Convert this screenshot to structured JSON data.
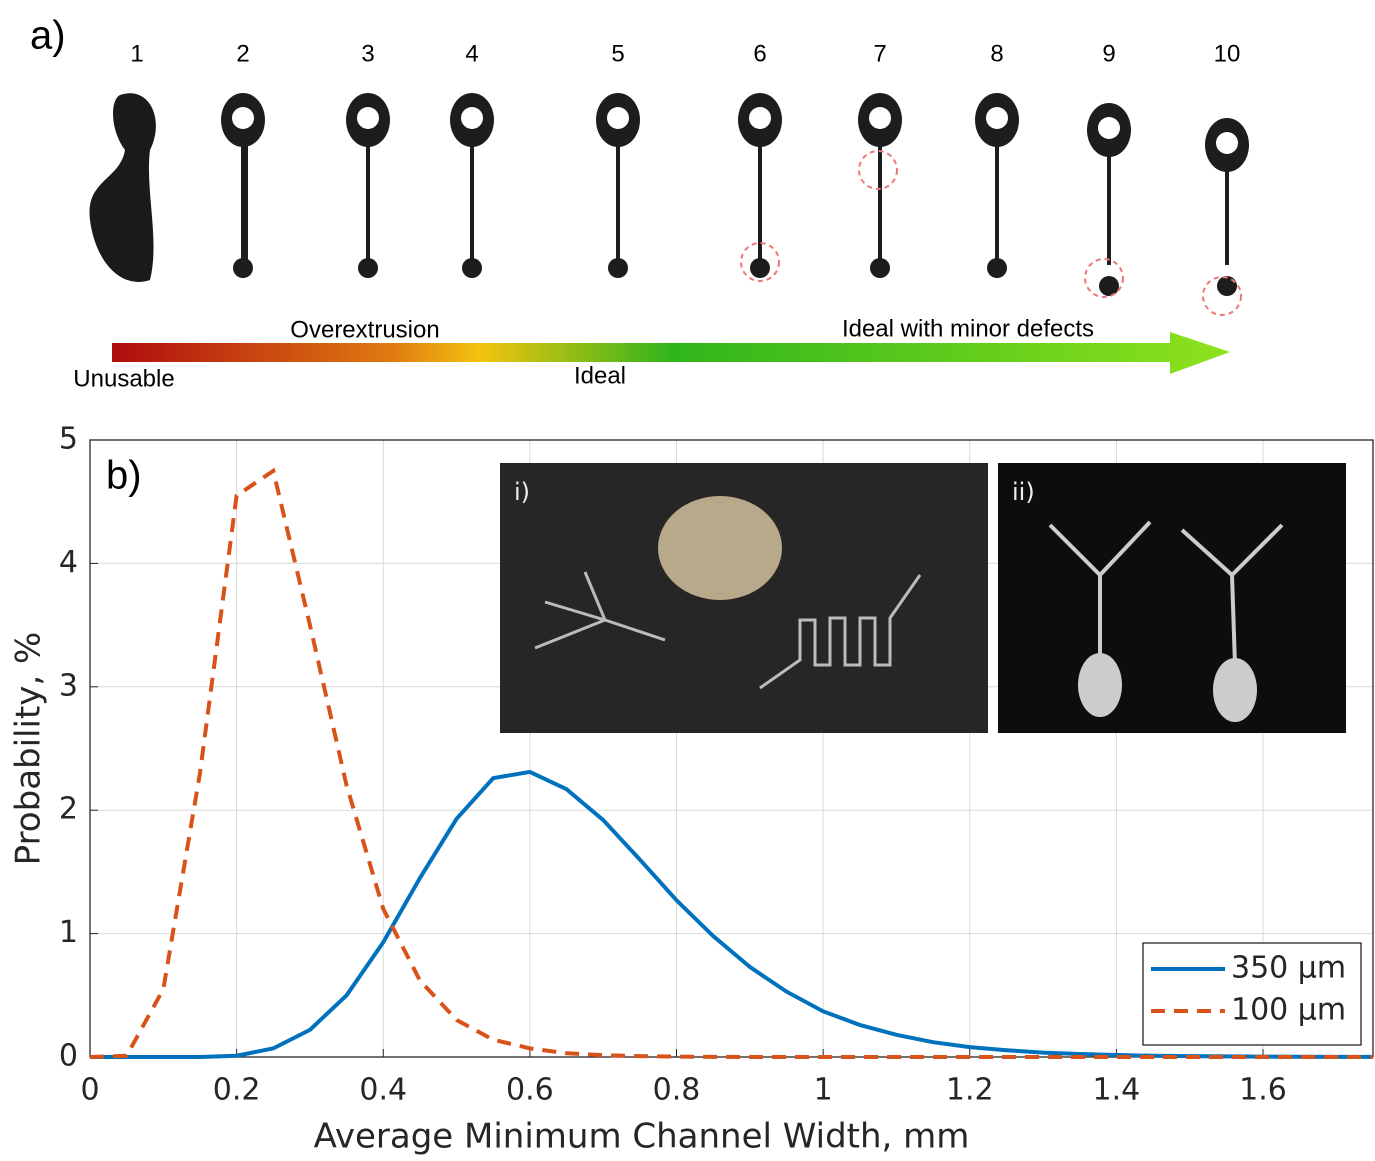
{
  "panel_a": {
    "label": "a)",
    "samples": [
      "1",
      "2",
      "3",
      "4",
      "5",
      "6",
      "7",
      "8",
      "9",
      "10"
    ],
    "arrow_labels": [
      "Overextrusion",
      "Ideal with minor defects",
      "Unusable",
      "Ideal"
    ]
  },
  "chart_data": {
    "type": "line",
    "panel_label": "b)",
    "x_label": "Average Minimum Channel Width, mm",
    "y_label": "Probability, %",
    "inset_labels": [
      "i)",
      "ii)"
    ],
    "xlim": [
      0,
      1.75
    ],
    "ylim": [
      0,
      5
    ],
    "xticks": [
      0,
      0.2,
      0.4,
      0.6,
      0.8,
      1,
      1.2,
      1.4,
      1.6
    ],
    "yticks": [
      0,
      1,
      2,
      3,
      4,
      5
    ],
    "grid": true,
    "legend": "lower right",
    "x": [
      0,
      0.05,
      0.1,
      0.15,
      0.2,
      0.25,
      0.3,
      0.35,
      0.4,
      0.45,
      0.5,
      0.55,
      0.6,
      0.65,
      0.7,
      0.75,
      0.8,
      0.85,
      0.9,
      0.95,
      1.0,
      1.05,
      1.1,
      1.15,
      1.2,
      1.25,
      1.3,
      1.35,
      1.4,
      1.45,
      1.5,
      1.55,
      1.6,
      1.65,
      1.7,
      1.75
    ],
    "series": [
      {
        "name": "350 µm",
        "color": "#0072bd",
        "dash": false,
        "values": [
          0,
          0,
          0,
          0,
          0.01,
          0.07,
          0.22,
          0.5,
          0.93,
          1.45,
          1.93,
          2.26,
          2.31,
          2.17,
          1.92,
          1.6,
          1.27,
          0.98,
          0.73,
          0.53,
          0.37,
          0.26,
          0.18,
          0.12,
          0.08,
          0.055,
          0.035,
          0.024,
          0.016,
          0.01,
          0.007,
          0.005,
          0.003,
          0.002,
          0.001,
          0.001
        ]
      },
      {
        "name": "100 µm",
        "color": "#d95319",
        "dash": true,
        "values": [
          0,
          0.01,
          0.55,
          2.3,
          4.55,
          4.75,
          3.5,
          2.2,
          1.2,
          0.62,
          0.3,
          0.14,
          0.07,
          0.03,
          0.015,
          0.007,
          0.003,
          0.001,
          0,
          0,
          0,
          0,
          0,
          0,
          0,
          0,
          0,
          0,
          0,
          0,
          0,
          0,
          0,
          0,
          0,
          0
        ]
      }
    ]
  }
}
